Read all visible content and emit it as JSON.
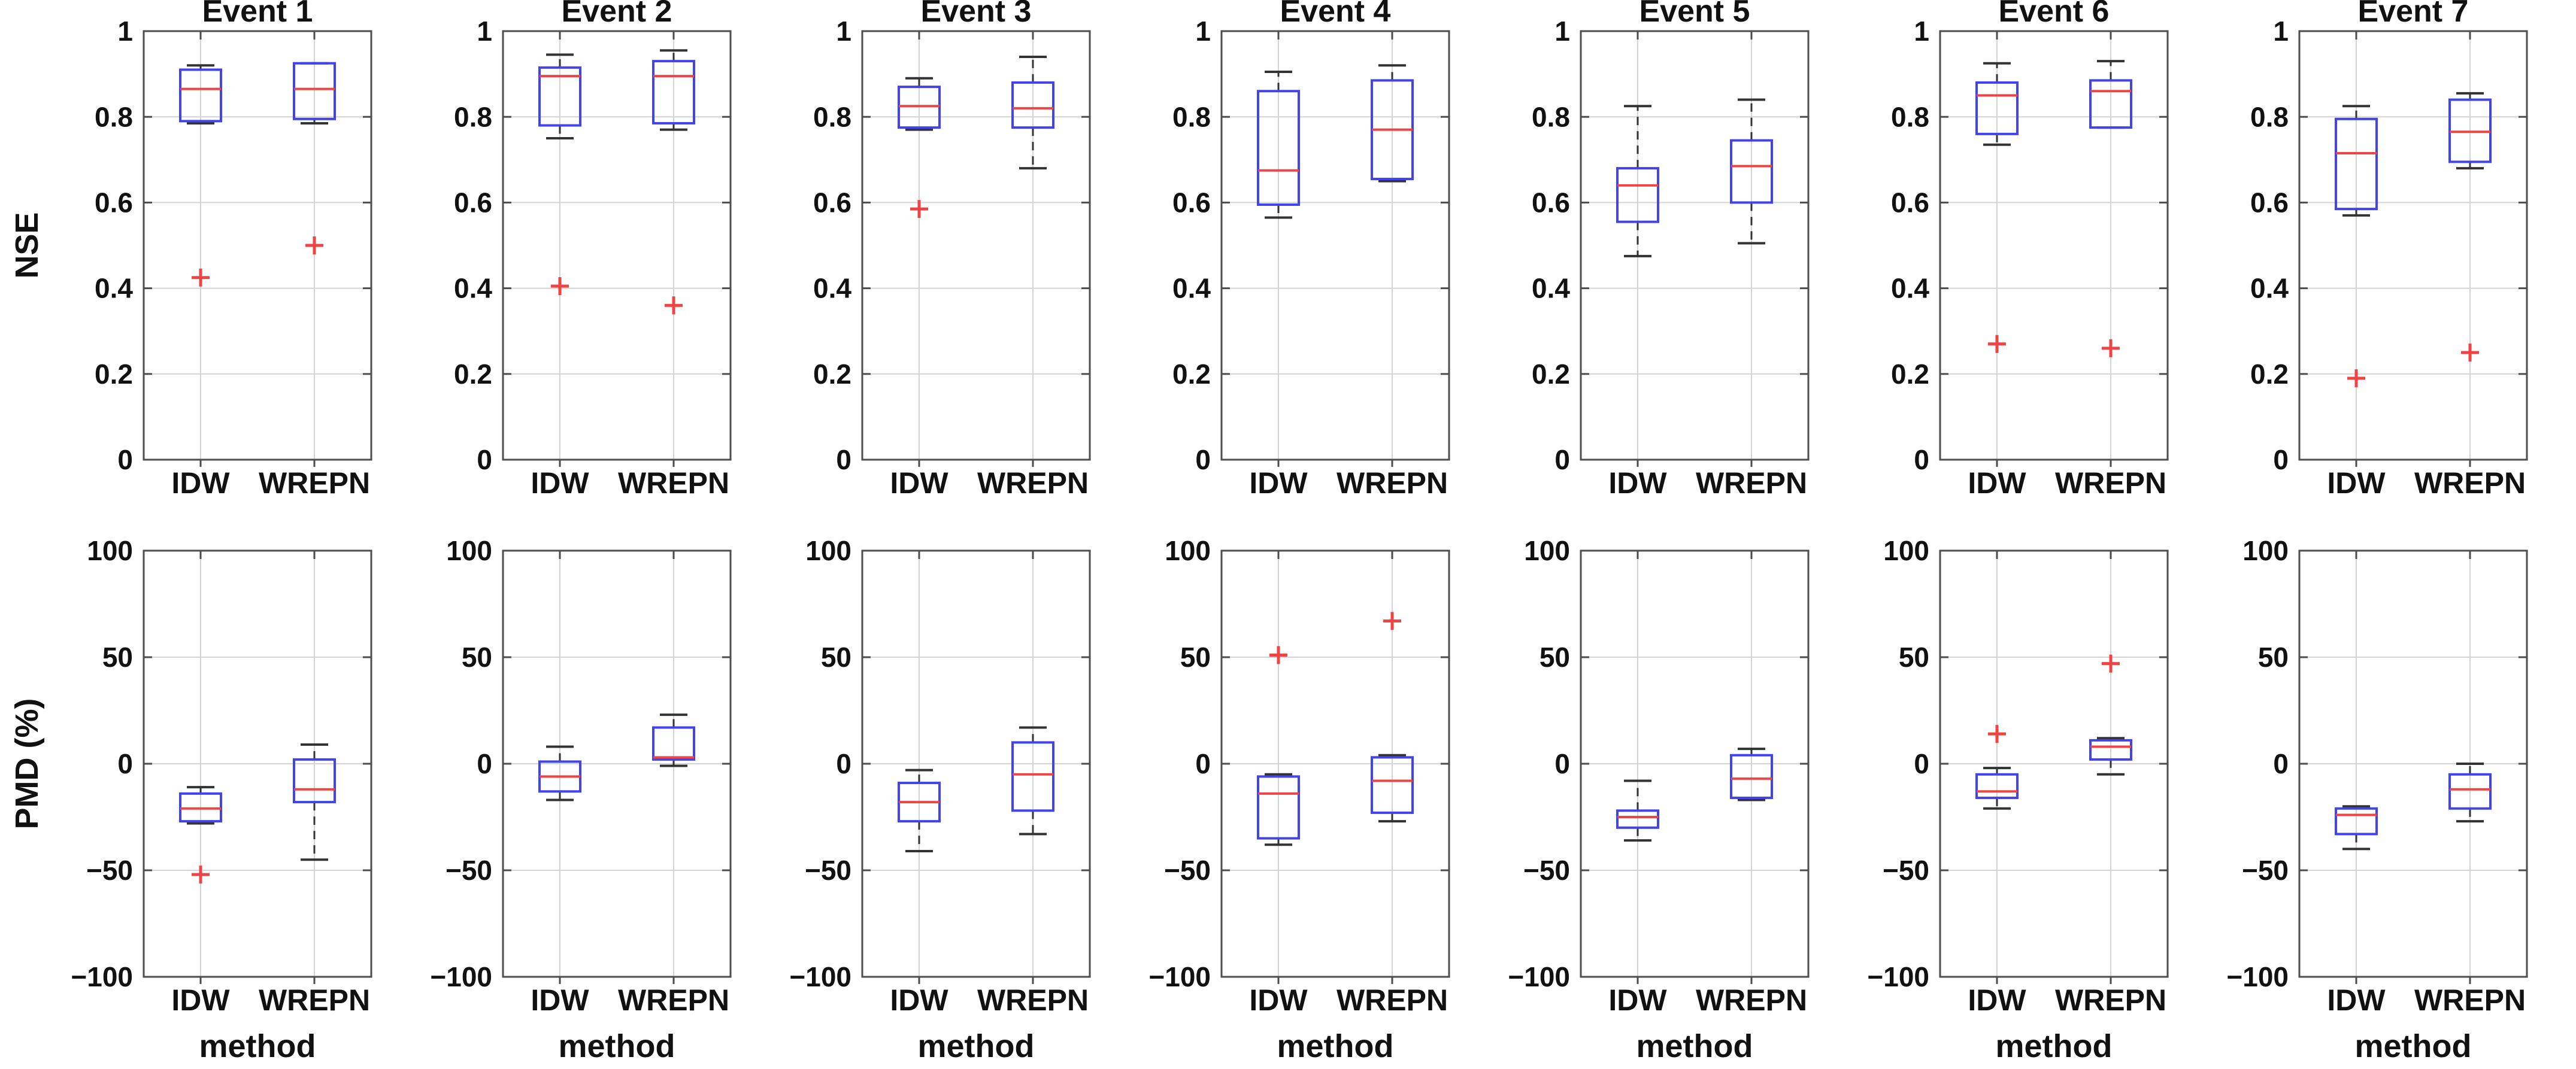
{
  "figure": {
    "background": "#ffffff",
    "panel_columns": 7,
    "panel_rows": 2
  },
  "style": {
    "box_color": "#4242ee",
    "median_color": "#ef4444",
    "outlier_color": "#ef4444",
    "whisker_color": "#333333",
    "axis_color": "#4d4d4d",
    "grid_color": "#d4d4d4",
    "text_color": "#111111"
  },
  "chart_data": {
    "type": "boxplot",
    "categories": [
      "IDW",
      "WREPN"
    ],
    "xlabel": "method",
    "legend": "none",
    "grid": true,
    "rows": [
      {
        "ylabel": "NSE",
        "ylim": [
          0,
          1
        ],
        "yticks": [
          0,
          0.2,
          0.4,
          0.6,
          0.8,
          1
        ],
        "ytick_labels": [
          "0",
          "0.2",
          "0.4",
          "0.6",
          "0.8",
          "1"
        ],
        "show_titles": true,
        "show_xlabel": false,
        "panels": [
          {
            "title": "Event 1",
            "boxes": [
              {
                "method": "IDW",
                "whisker_low": 0.785,
                "q1": 0.79,
                "median": 0.865,
                "q3": 0.91,
                "whisker_high": 0.92,
                "outliers": [
                  0.425
                ]
              },
              {
                "method": "WREPN",
                "whisker_low": 0.785,
                "q1": 0.795,
                "median": 0.865,
                "q3": 0.925,
                "whisker_high": 0.925,
                "outliers": [
                  0.5
                ]
              }
            ]
          },
          {
            "title": "Event 2",
            "boxes": [
              {
                "method": "IDW",
                "whisker_low": 0.75,
                "q1": 0.78,
                "median": 0.895,
                "q3": 0.915,
                "whisker_high": 0.945,
                "outliers": [
                  0.405
                ]
              },
              {
                "method": "WREPN",
                "whisker_low": 0.77,
                "q1": 0.785,
                "median": 0.895,
                "q3": 0.93,
                "whisker_high": 0.955,
                "outliers": [
                  0.36
                ]
              }
            ]
          },
          {
            "title": "Event 3",
            "boxes": [
              {
                "method": "IDW",
                "whisker_low": 0.77,
                "q1": 0.775,
                "median": 0.825,
                "q3": 0.87,
                "whisker_high": 0.89,
                "outliers": [
                  0.585
                ]
              },
              {
                "method": "WREPN",
                "whisker_low": 0.68,
                "q1": 0.775,
                "median": 0.82,
                "q3": 0.88,
                "whisker_high": 0.94,
                "outliers": []
              }
            ]
          },
          {
            "title": "Event 4",
            "boxes": [
              {
                "method": "IDW",
                "whisker_low": 0.565,
                "q1": 0.595,
                "median": 0.675,
                "q3": 0.86,
                "whisker_high": 0.905,
                "outliers": []
              },
              {
                "method": "WREPN",
                "whisker_low": 0.65,
                "q1": 0.655,
                "median": 0.77,
                "q3": 0.885,
                "whisker_high": 0.92,
                "outliers": []
              }
            ]
          },
          {
            "title": "Event 5",
            "boxes": [
              {
                "method": "IDW",
                "whisker_low": 0.475,
                "q1": 0.555,
                "median": 0.64,
                "q3": 0.68,
                "whisker_high": 0.825,
                "outliers": []
              },
              {
                "method": "WREPN",
                "whisker_low": 0.505,
                "q1": 0.6,
                "median": 0.685,
                "q3": 0.745,
                "whisker_high": 0.84,
                "outliers": []
              }
            ]
          },
          {
            "title": "Event 6",
            "boxes": [
              {
                "method": "IDW",
                "whisker_low": 0.735,
                "q1": 0.76,
                "median": 0.85,
                "q3": 0.88,
                "whisker_high": 0.925,
                "outliers": [
                  0.27
                ]
              },
              {
                "method": "WREPN",
                "whisker_low": 0.775,
                "q1": 0.775,
                "median": 0.86,
                "q3": 0.885,
                "whisker_high": 0.93,
                "outliers": [
                  0.26
                ]
              }
            ]
          },
          {
            "title": "Event 7",
            "boxes": [
              {
                "method": "IDW",
                "whisker_low": 0.57,
                "q1": 0.585,
                "median": 0.715,
                "q3": 0.795,
                "whisker_high": 0.825,
                "outliers": [
                  0.19
                ]
              },
              {
                "method": "WREPN",
                "whisker_low": 0.68,
                "q1": 0.695,
                "median": 0.765,
                "q3": 0.84,
                "whisker_high": 0.855,
                "outliers": [
                  0.25
                ]
              }
            ]
          }
        ]
      },
      {
        "ylabel": "PMD (%)",
        "ylim": [
          -100,
          100
        ],
        "yticks": [
          -100,
          -50,
          0,
          50,
          100
        ],
        "ytick_labels": [
          "−100",
          "−50",
          "0",
          "50",
          "100"
        ],
        "show_titles": false,
        "show_xlabel": true,
        "panels": [
          {
            "title": "",
            "boxes": [
              {
                "method": "IDW",
                "whisker_low": -28,
                "q1": -27,
                "median": -21,
                "q3": -14,
                "whisker_high": -11,
                "outliers": [
                  -52
                ]
              },
              {
                "method": "WREPN",
                "whisker_low": -45,
                "q1": -18,
                "median": -12,
                "q3": 2,
                "whisker_high": 9,
                "outliers": []
              }
            ]
          },
          {
            "title": "",
            "boxes": [
              {
                "method": "IDW",
                "whisker_low": -17,
                "q1": -13,
                "median": -6,
                "q3": 1,
                "whisker_high": 8,
                "outliers": []
              },
              {
                "method": "WREPN",
                "whisker_low": -1,
                "q1": 2,
                "median": 3,
                "q3": 17,
                "whisker_high": 23,
                "outliers": []
              }
            ]
          },
          {
            "title": "",
            "boxes": [
              {
                "method": "IDW",
                "whisker_low": -41,
                "q1": -27,
                "median": -18,
                "q3": -9,
                "whisker_high": -3,
                "outliers": []
              },
              {
                "method": "WREPN",
                "whisker_low": -33,
                "q1": -22,
                "median": -5,
                "q3": 10,
                "whisker_high": 17,
                "outliers": []
              }
            ]
          },
          {
            "title": "",
            "boxes": [
              {
                "method": "IDW",
                "whisker_low": -38,
                "q1": -35,
                "median": -14,
                "q3": -6,
                "whisker_high": -5,
                "outliers": [
                  51
                ]
              },
              {
                "method": "WREPN",
                "whisker_low": -27,
                "q1": -23,
                "median": -8,
                "q3": 3,
                "whisker_high": 4,
                "outliers": [
                  67
                ]
              }
            ]
          },
          {
            "title": "",
            "boxes": [
              {
                "method": "IDW",
                "whisker_low": -36,
                "q1": -30,
                "median": -25,
                "q3": -22,
                "whisker_high": -8,
                "outliers": []
              },
              {
                "method": "WREPN",
                "whisker_low": -17,
                "q1": -16,
                "median": -7,
                "q3": 4,
                "whisker_high": 7,
                "outliers": []
              }
            ]
          },
          {
            "title": "",
            "boxes": [
              {
                "method": "IDW",
                "whisker_low": -21,
                "q1": -16,
                "median": -13,
                "q3": -5,
                "whisker_high": -2,
                "outliers": [
                  14
                ]
              },
              {
                "method": "WREPN",
                "whisker_low": -5,
                "q1": 2,
                "median": 8,
                "q3": 11,
                "whisker_high": 12,
                "outliers": [
                  47
                ]
              }
            ]
          },
          {
            "title": "",
            "boxes": [
              {
                "method": "IDW",
                "whisker_low": -40,
                "q1": -33,
                "median": -24,
                "q3": -21,
                "whisker_high": -20,
                "outliers": []
              },
              {
                "method": "WREPN",
                "whisker_low": -27,
                "q1": -21,
                "median": -12,
                "q3": -5,
                "whisker_high": 0,
                "outliers": []
              }
            ]
          }
        ]
      }
    ]
  }
}
